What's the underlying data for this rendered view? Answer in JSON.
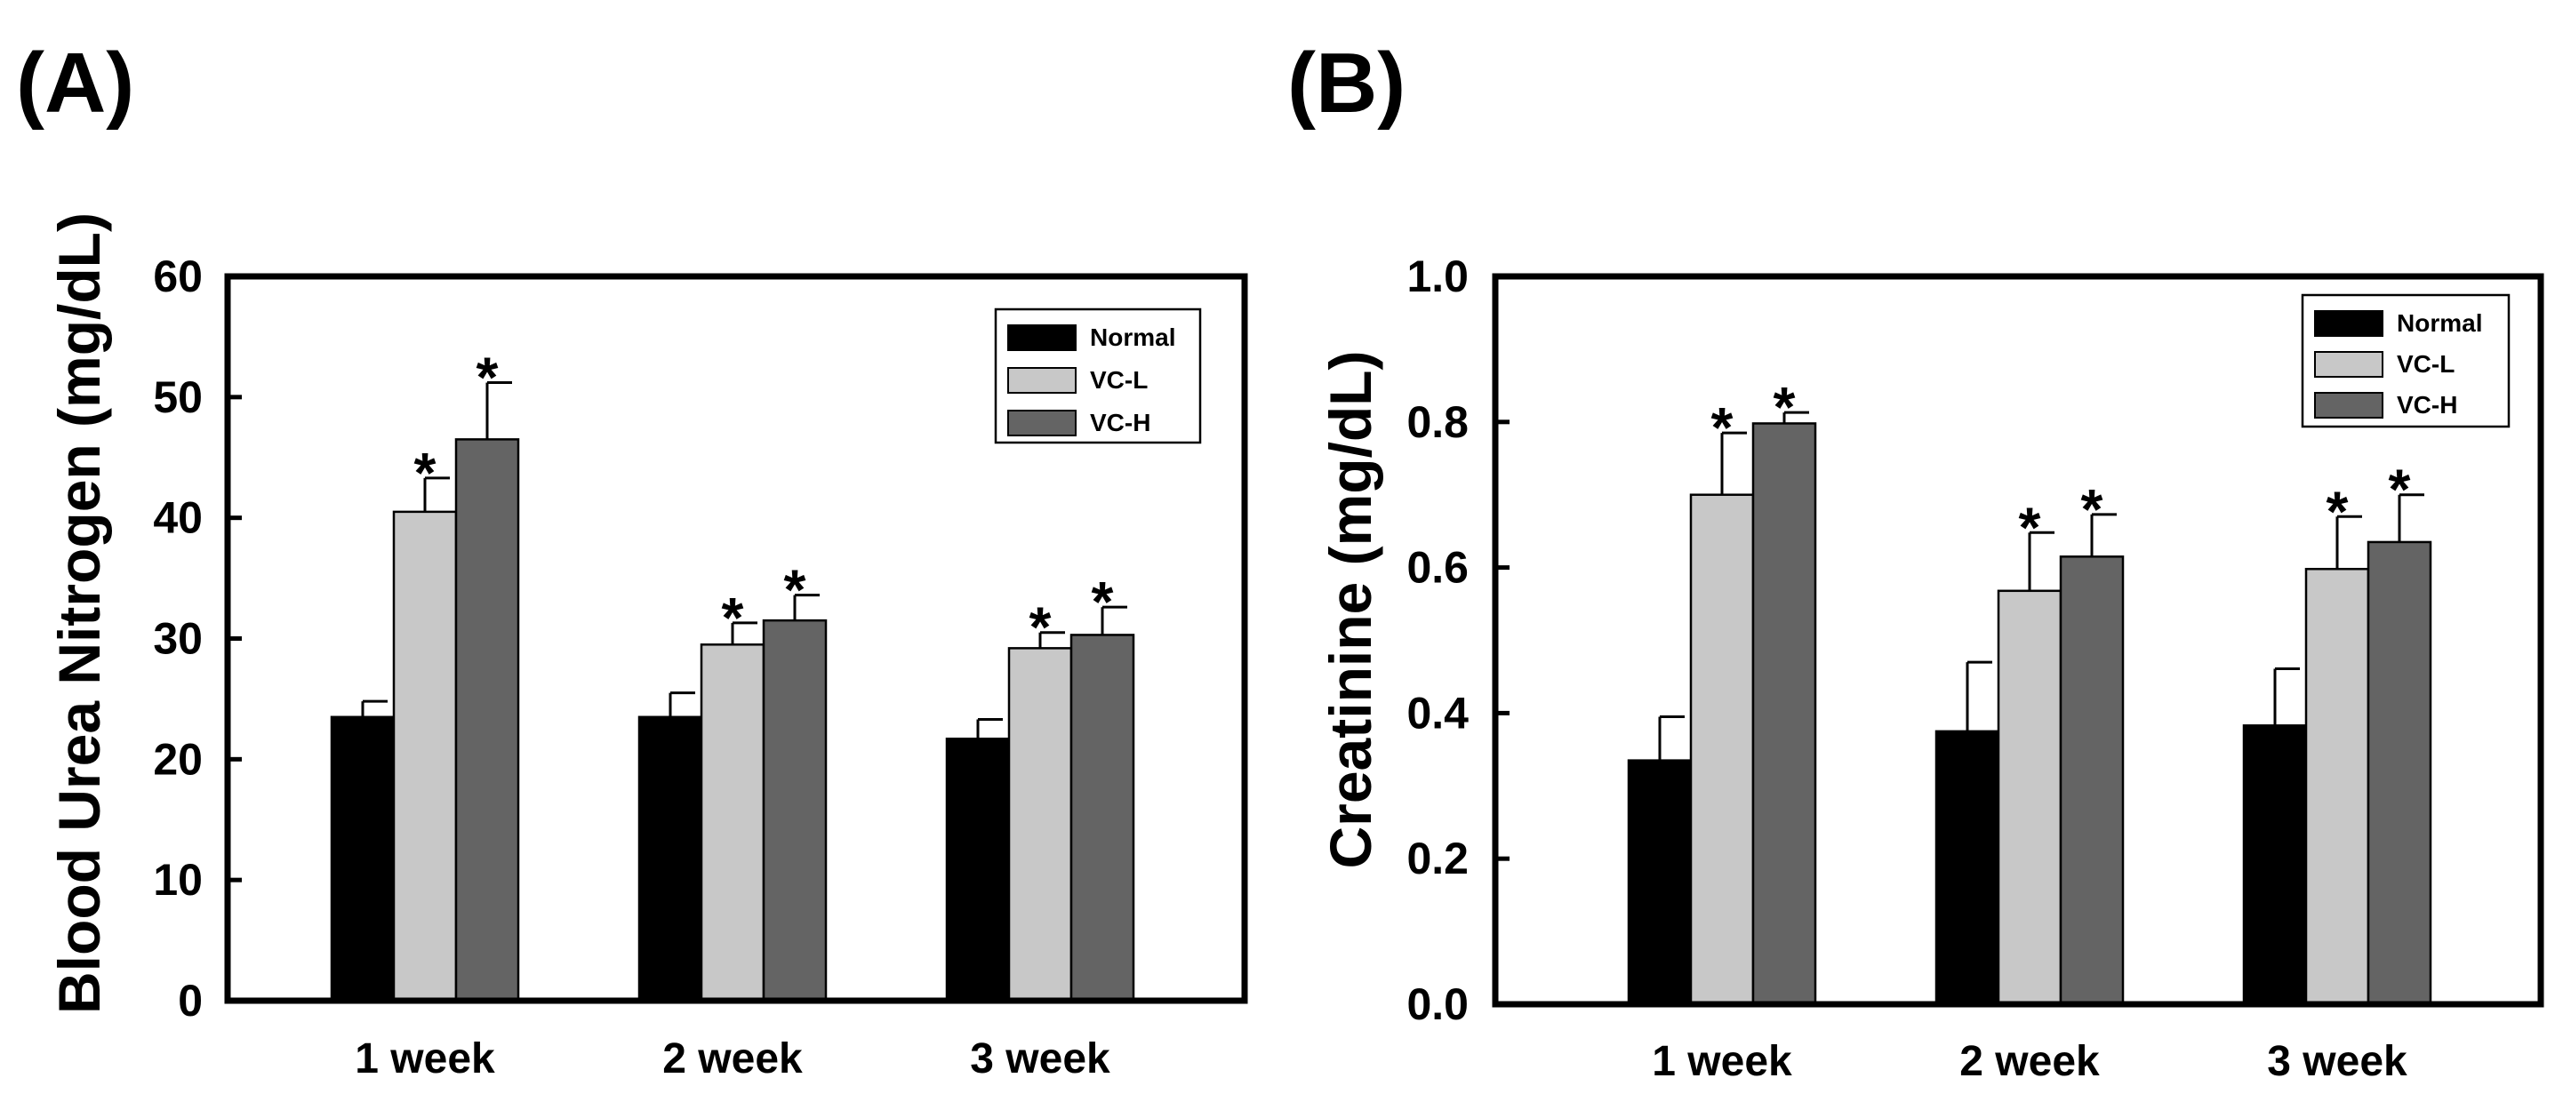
{
  "colors": {
    "normal": "#000000",
    "vcl": "#c8c8c8",
    "vch": "#646464",
    "axis": "#000000",
    "background": "#ffffff"
  },
  "chart_data": [
    {
      "panel_label": "(A)",
      "type": "bar",
      "title": "",
      "xlabel": "",
      "ylabel": "Blood Urea Nitrogen (mg/dL)",
      "ylim": [
        0,
        60
      ],
      "yticks": [
        0,
        10,
        20,
        30,
        40,
        50,
        60
      ],
      "ytick_labels": [
        "0",
        "10",
        "20",
        "30",
        "40",
        "50",
        "60"
      ],
      "categories": [
        "1 week",
        "2 week",
        "3 week"
      ],
      "legend_position": "top-right",
      "series": [
        {
          "name": "Normal",
          "color_key": "normal",
          "values": [
            23.5,
            23.5,
            21.7
          ],
          "errors": [
            1.3,
            2.0,
            1.6
          ],
          "significant": [
            false,
            false,
            false
          ]
        },
        {
          "name": "VC-L",
          "color_key": "vcl",
          "values": [
            40.5,
            29.5,
            29.2
          ],
          "errors": [
            2.8,
            1.8,
            1.3
          ],
          "significant": [
            true,
            true,
            true
          ]
        },
        {
          "name": "VC-H",
          "color_key": "vch",
          "values": [
            46.5,
            31.5,
            30.3
          ],
          "errors": [
            4.7,
            2.1,
            2.3
          ],
          "significant": [
            true,
            true,
            true
          ]
        }
      ],
      "significance_marker": "*"
    },
    {
      "panel_label": "(B)",
      "type": "bar",
      "title": "",
      "xlabel": "",
      "ylabel": "Creatinine (mg/dL)",
      "ylim": [
        0,
        1.0
      ],
      "yticks": [
        0,
        0.2,
        0.4,
        0.6,
        0.8,
        1.0
      ],
      "ytick_labels": [
        "0.0",
        "0.2",
        "0.4",
        "0.6",
        "0.8",
        "1.0"
      ],
      "categories": [
        "1 week",
        "2 week",
        "3 week"
      ],
      "legend_position": "top-right",
      "series": [
        {
          "name": "Normal",
          "color_key": "normal",
          "values": [
            0.335,
            0.375,
            0.383
          ],
          "errors": [
            0.06,
            0.095,
            0.078
          ],
          "significant": [
            false,
            false,
            false
          ]
        },
        {
          "name": "VC-L",
          "color_key": "vcl",
          "values": [
            0.7,
            0.568,
            0.598
          ],
          "errors": [
            0.085,
            0.08,
            0.072
          ],
          "significant": [
            true,
            true,
            true
          ]
        },
        {
          "name": "VC-H",
          "color_key": "vch",
          "values": [
            0.798,
            0.615,
            0.635
          ],
          "errors": [
            0.015,
            0.058,
            0.065
          ],
          "significant": [
            true,
            true,
            true
          ]
        }
      ],
      "significance_marker": "*"
    }
  ]
}
